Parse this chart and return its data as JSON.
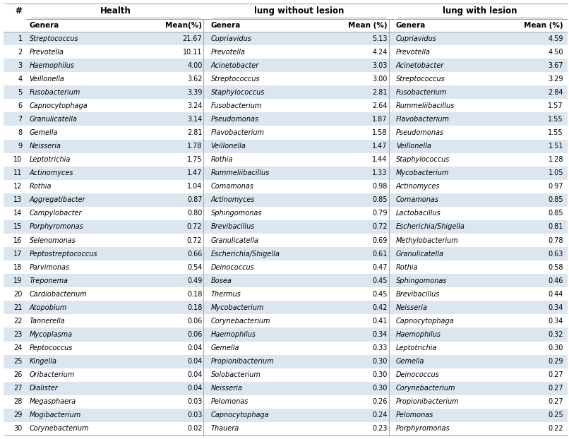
{
  "title_health": "Health",
  "title_lung_without": "lung without lesion",
  "title_lung_with": "lung with lesion",
  "col_header_row_num": "#",
  "col_headers": [
    "Genera",
    "Mean(%)",
    "Genera",
    "Mean (%)",
    "Genera",
    "Mean (%)"
  ],
  "row_numbers": [
    "1",
    "2",
    "3",
    "4",
    "5",
    "6",
    "7",
    "8",
    "9",
    "10",
    "11",
    "12",
    "13",
    "14",
    "15",
    "16",
    "17",
    "18",
    "19",
    "20",
    "21",
    "22",
    "23",
    "24",
    "25",
    "26",
    "27",
    "28",
    "29",
    "30"
  ],
  "health_genera": [
    "Streptococcus",
    "Prevotella",
    "Haemophilus",
    "Veillonella",
    "Fusobacterium",
    "Capnocytophaga",
    "Granulicatella",
    "Gemella",
    "Neisseria",
    "Leptotrichia",
    "Actinomyces",
    "Rothia",
    "Aggregatibacter",
    "Campylobacter",
    "Porphyromonas",
    "Selenomonas",
    "Peptostreptococcus",
    "Parvimonas",
    "Treponema",
    "Cardiobacterium",
    "Atopobium",
    "Tannerella",
    "Mycoplasma",
    "Peptococcus",
    "Kingella",
    "Oribacterium",
    "Dialister",
    "Megasphaera",
    "Mogibacterium",
    "Corynebacterium"
  ],
  "health_mean": [
    "21.67",
    "10.11",
    "4.00",
    "3.62",
    "3.39",
    "3.24",
    "3.14",
    "2.81",
    "1.78",
    "1.75",
    "1.47",
    "1.04",
    "0.87",
    "0.80",
    "0.72",
    "0.72",
    "0.66",
    "0.54",
    "0.49",
    "0.18",
    "0.18",
    "0.06",
    "0.06",
    "0.04",
    "0.04",
    "0.04",
    "0.04",
    "0.03",
    "0.03",
    "0.02"
  ],
  "lung_without_genera": [
    "Cupriavidus",
    "Prevotella",
    "Acinetobacter",
    "Streptococcus",
    "Staphylococcus",
    "Fusobacterium",
    "Pseudomonas",
    "Flavobacterium",
    "Veillonella",
    "Rothia",
    "Rummeliibacillus",
    "Comamonas",
    "Actinomyces",
    "Sphingomonas",
    "Brevibacillus",
    "Granulicatella",
    "Escherichia/Shigella",
    "Deinococcus",
    "Bosea",
    "Thermus",
    "Mycobacterium",
    "Corynebacterium",
    "Haemophilus",
    "Gemella",
    "Propionibacterium",
    "Solobacterium",
    "Neisseria",
    "Pelomonas",
    "Capnocytophaga",
    "Thauera"
  ],
  "lung_without_mean": [
    "5.13",
    "4.24",
    "3.03",
    "3.00",
    "2.81",
    "2.64",
    "1.87",
    "1.58",
    "1.47",
    "1.44",
    "1.33",
    "0.98",
    "0.85",
    "0.79",
    "0.72",
    "0.69",
    "0.61",
    "0.47",
    "0.45",
    "0.45",
    "0.42",
    "0.41",
    "0.34",
    "0.33",
    "0.30",
    "0.30",
    "0.30",
    "0.26",
    "0.24",
    "0.23"
  ],
  "lung_with_genera": [
    "Cupriavidus",
    "Prevotella",
    "Acinetobacter",
    "Streptococcus",
    "Fusobacterium",
    "Rummeliibacillus",
    "Flavobacterium",
    "Pseudomonas",
    "Veillonella",
    "Staphylococcus",
    "Mycobacterium",
    "Actinomyces",
    "Comamonas",
    "Lactobacillus",
    "Escherichia/Shigella",
    "Methylobacterium",
    "Granulicatella",
    "Rothia",
    "Sphingomonas",
    "Brevibacillus",
    "Neisseria",
    "Capnocytophaga",
    "Haemophilus",
    "Leptotrichia",
    "Gemella",
    "Deinococcus",
    "Corynebacterium",
    "Propionibacterium",
    "Pelomonas",
    "Porphyromonas"
  ],
  "lung_with_mean": [
    "4.59",
    "4.50",
    "3.67",
    "3.29",
    "2.84",
    "1.57",
    "1.55",
    "1.55",
    "1.51",
    "1.28",
    "1.05",
    "0.97",
    "0.85",
    "0.85",
    "0.81",
    "0.78",
    "0.63",
    "0.58",
    "0.46",
    "0.44",
    "0.34",
    "0.34",
    "0.32",
    "0.30",
    "0.29",
    "0.27",
    "0.27",
    "0.27",
    "0.25",
    "0.22"
  ],
  "bg_color_even": "#dce6f1",
  "bg_color_odd": "#ffffff",
  "border_color": "#aaaaaa",
  "figsize": [
    8.06,
    6.22
  ],
  "dpi": 100,
  "font_size_data": 7.0,
  "font_size_header": 7.5,
  "font_size_group": 8.5
}
